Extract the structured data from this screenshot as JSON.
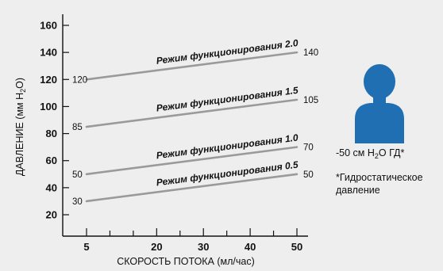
{
  "chart_data": {
    "type": "line",
    "xlabel": "СКОРОСТЬ ПОТОКА (мл/час)",
    "ylabel_main": "ДАВЛЕНИЕ (мм H",
    "ylabel_sub": "2",
    "ylabel_tail": "O)",
    "x_ticks": [
      5,
      20,
      30,
      40,
      50
    ],
    "y_ticks": [
      20,
      40,
      60,
      80,
      100,
      120,
      140,
      160
    ],
    "xlim": [
      5,
      50
    ],
    "ylim": [
      10,
      165
    ],
    "series": [
      {
        "name": "Режим функционирования 2.0",
        "x": [
          5,
          50
        ],
        "y": [
          120,
          140
        ],
        "start_label": "120",
        "end_label": "140"
      },
      {
        "name": "Режим функционирования 1.5",
        "x": [
          5,
          50
        ],
        "y": [
          85,
          105
        ],
        "start_label": "85",
        "end_label": "105"
      },
      {
        "name": "Режим функционирования  1.0",
        "x": [
          5,
          50
        ],
        "y": [
          50,
          70
        ],
        "start_label": "50",
        "end_label": "70"
      },
      {
        "name": "Режим функционирования  0.5",
        "x": [
          5,
          50
        ],
        "y": [
          30,
          50
        ],
        "start_label": "30",
        "end_label": "50"
      }
    ],
    "colors": {
      "line": "#9a9a9a",
      "figure": "#1f6fb2",
      "background": "#eeeeee"
    }
  },
  "side_panel": {
    "figure_icon": "person-silhouette",
    "gd_pre": "-50 см H",
    "gd_sub": "2",
    "gd_post": "O ГД*",
    "footnote_line1": "*Гидростатическое",
    "footnote_line2": "давление"
  }
}
